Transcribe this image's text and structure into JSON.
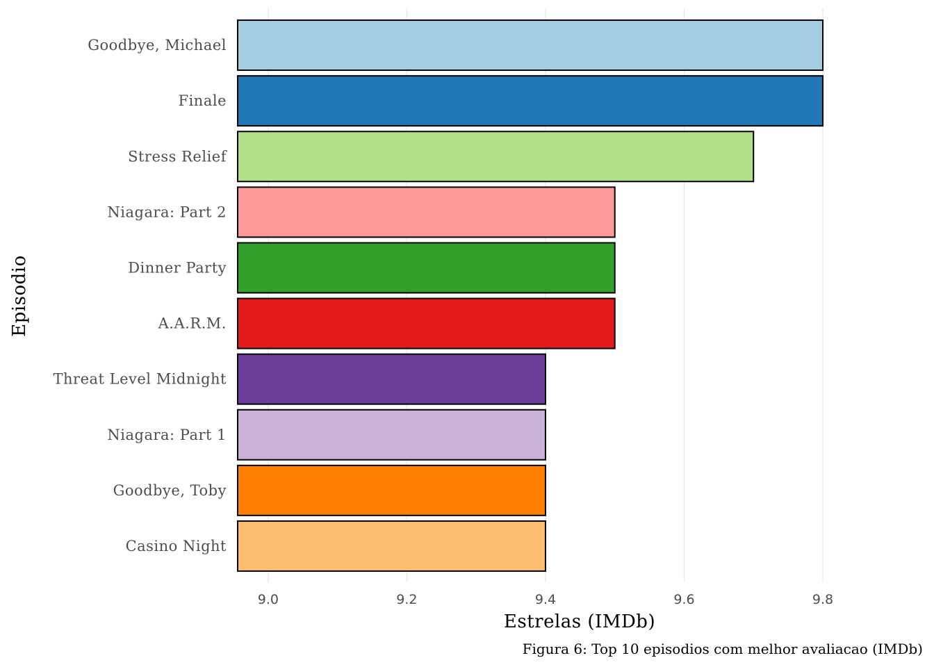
{
  "chart_data": {
    "type": "bar",
    "orientation": "horizontal",
    "categories": [
      "Goodbye, Michael",
      "Finale",
      "Stress Relief",
      "Niagara: Part 2",
      "Dinner Party",
      "A.A.R.M.",
      "Threat Level Midnight",
      "Niagara: Part 1",
      "Goodbye, Toby",
      "Casino Night"
    ],
    "values": [
      9.8,
      9.8,
      9.7,
      9.5,
      9.5,
      9.5,
      9.4,
      9.4,
      9.4,
      9.4
    ],
    "colors": [
      "#a6cee3",
      "#1f78b4",
      "#b2df8a",
      "#fb9a99",
      "#33a02c",
      "#e31a1c",
      "#6a3d9a",
      "#cab2d6",
      "#ff7f00",
      "#fdbf6f"
    ],
    "xlabel": "Estrelas (IMDb)",
    "ylabel": "Episodio",
    "xlim": [
      8.956,
      9.8
    ],
    "xticks": [
      "9.0",
      "9.2",
      "9.4",
      "9.6",
      "9.8"
    ],
    "grid": true,
    "caption": "Figura 6: Top 10 episodios com melhor avaliacao (IMDb)"
  }
}
